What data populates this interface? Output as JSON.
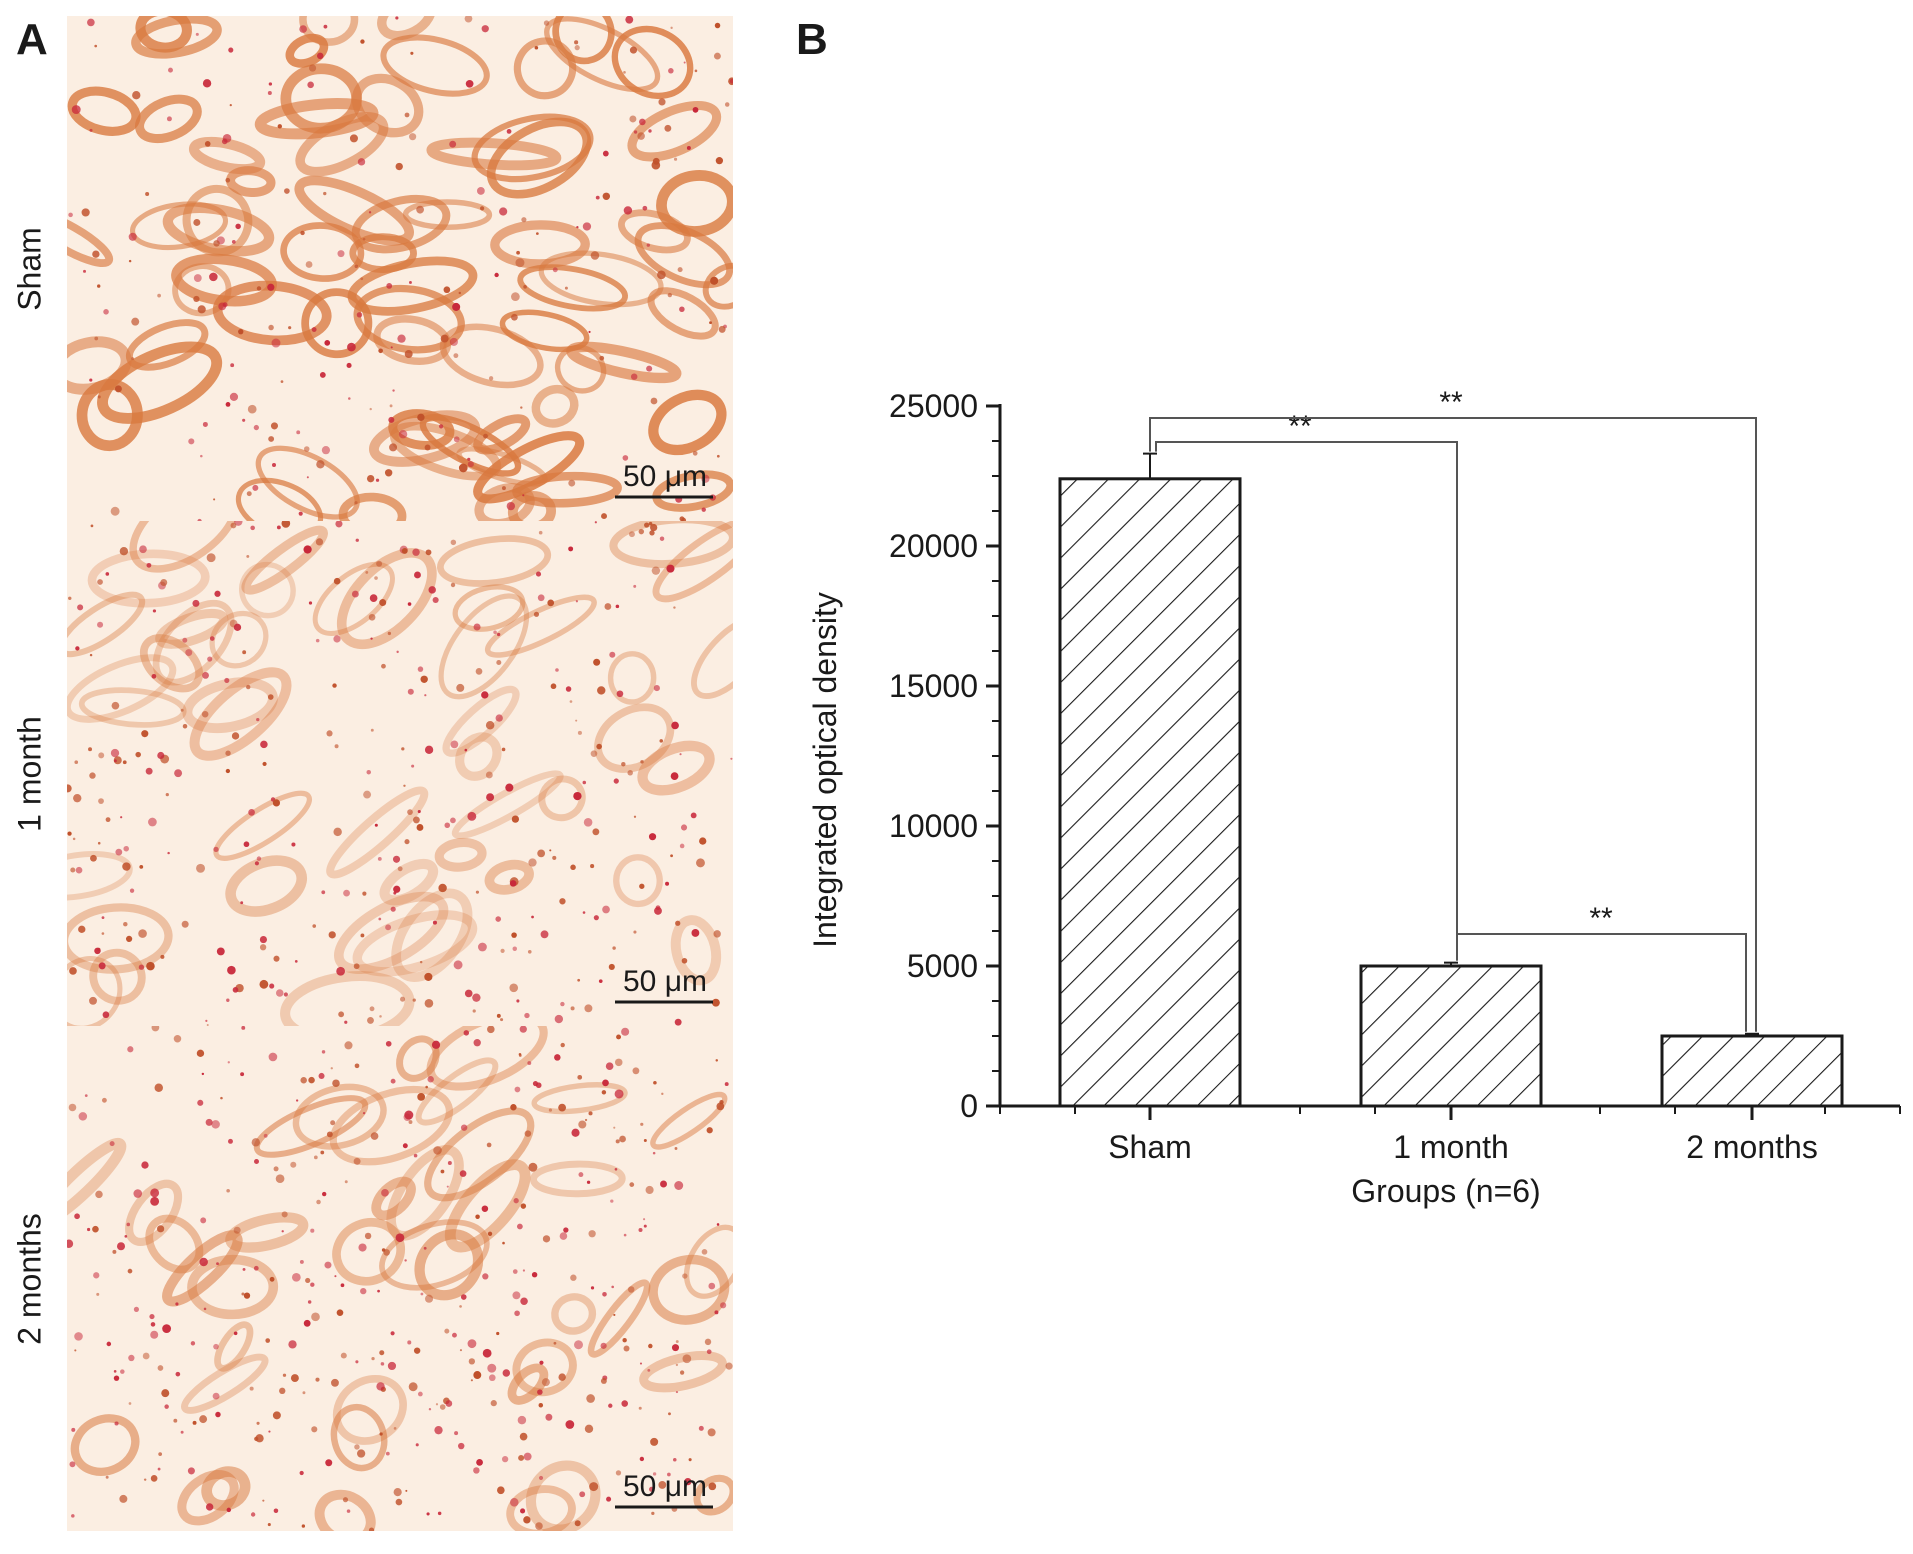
{
  "panels": {
    "a_label": "A",
    "b_label": "B"
  },
  "micrographs": [
    {
      "label": "Sham",
      "scale_bar": "50 μm",
      "stain_intensity": "strong"
    },
    {
      "label": "1 month",
      "scale_bar": "50 μm",
      "stain_intensity": "moderate"
    },
    {
      "label": "2 months",
      "scale_bar": "50 μm",
      "stain_intensity": "weak"
    }
  ],
  "colors": {
    "stain": "#d9793f",
    "stain_dark": "#c0502a",
    "red_dots": "#c8283a",
    "background": "#fbeee2",
    "bar_hatch": "#1a1a1a"
  },
  "chart_data": {
    "type": "bar",
    "categories": [
      "Sham",
      "1 month",
      "2 months"
    ],
    "values": [
      22400,
      5000,
      2500
    ],
    "errors": [
      900,
      120,
      80
    ],
    "xlabel": "Groups (n=6)",
    "ylabel": "Integrated optical density",
    "ylim": [
      0,
      25000
    ],
    "yticks": [
      0,
      5000,
      10000,
      15000,
      20000,
      25000
    ],
    "bar_fill": "diagonal-hatch",
    "significance": [
      {
        "from": 0,
        "to": 1,
        "label": "**"
      },
      {
        "from": 0,
        "to": 2,
        "label": "**"
      },
      {
        "from": 1,
        "to": 2,
        "label": "**"
      }
    ]
  }
}
